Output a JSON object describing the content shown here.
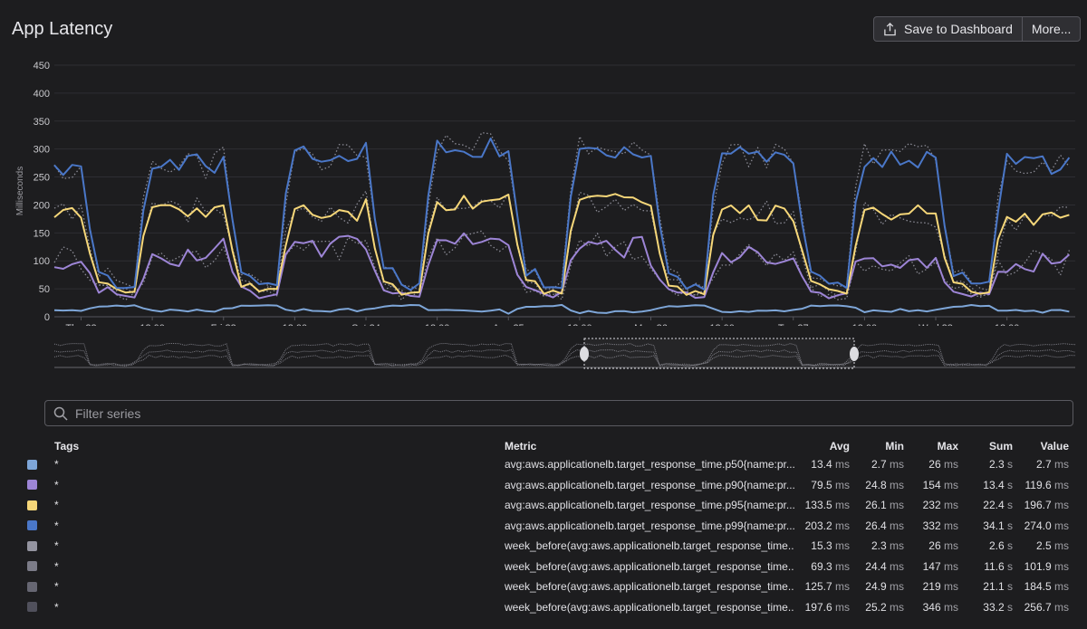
{
  "title": "App Latency",
  "toolbar": {
    "save_label": "Save to Dashboard",
    "more_label": "More..."
  },
  "filter": {
    "placeholder": "Filter series"
  },
  "table": {
    "headers": {
      "tags": "Tags",
      "metric": "Metric",
      "avg": "Avg",
      "min": "Min",
      "max": "Max",
      "sum": "Sum",
      "value": "Value"
    },
    "rows": [
      {
        "color": "#7ea6d8",
        "tag": "*",
        "metric": "avg:aws.applicationelb.target_response_time.p50{name:pr...",
        "avg": "13.4",
        "avg_u": "ms",
        "min": "2.7",
        "min_u": "ms",
        "max": "26",
        "max_u": "ms",
        "sum": "2.3",
        "sum_u": "s",
        "value": "2.7",
        "value_u": "ms"
      },
      {
        "color": "#9d85d6",
        "tag": "*",
        "metric": "avg:aws.applicationelb.target_response_time.p90{name:pr...",
        "avg": "79.5",
        "avg_u": "ms",
        "min": "24.8",
        "min_u": "ms",
        "max": "154",
        "max_u": "ms",
        "sum": "13.4",
        "sum_u": "s",
        "value": "119.6",
        "value_u": "ms"
      },
      {
        "color": "#f6d779",
        "tag": "*",
        "metric": "avg:aws.applicationelb.target_response_time.p95{name:pr...",
        "avg": "133.5",
        "avg_u": "ms",
        "min": "26.1",
        "min_u": "ms",
        "max": "232",
        "max_u": "ms",
        "sum": "22.4",
        "sum_u": "s",
        "value": "196.7",
        "value_u": "ms"
      },
      {
        "color": "#4a77c8",
        "tag": "*",
        "metric": "avg:aws.applicationelb.target_response_time.p99{name:pr...",
        "avg": "203.2",
        "avg_u": "ms",
        "min": "26.4",
        "min_u": "ms",
        "max": "332",
        "max_u": "ms",
        "sum": "34.1",
        "sum_u": "s",
        "value": "274.0",
        "value_u": "ms"
      },
      {
        "color": "#9494a0",
        "tag": "*",
        "metric": "week_before(avg:aws.applicationelb.target_response_time...",
        "avg": "15.3",
        "avg_u": "ms",
        "min": "2.3",
        "min_u": "ms",
        "max": "26",
        "max_u": "ms",
        "sum": "2.6",
        "sum_u": "s",
        "value": "2.5",
        "value_u": "ms"
      },
      {
        "color": "#7c7c88",
        "tag": "*",
        "metric": "week_before(avg:aws.applicationelb.target_response_time...",
        "avg": "69.3",
        "avg_u": "ms",
        "min": "24.4",
        "min_u": "ms",
        "max": "147",
        "max_u": "ms",
        "sum": "11.6",
        "sum_u": "s",
        "value": "101.9",
        "value_u": "ms"
      },
      {
        "color": "#666672",
        "tag": "*",
        "metric": "week_before(avg:aws.applicationelb.target_response_time...",
        "avg": "125.7",
        "avg_u": "ms",
        "min": "24.9",
        "min_u": "ms",
        "max": "219",
        "max_u": "ms",
        "sum": "21.1",
        "sum_u": "s",
        "value": "184.5",
        "value_u": "ms"
      },
      {
        "color": "#50505c",
        "tag": "*",
        "metric": "week_before(avg:aws.applicationelb.target_response_time...",
        "avg": "197.6",
        "avg_u": "ms",
        "min": "25.2",
        "min_u": "ms",
        "max": "346",
        "max_u": "ms",
        "sum": "33.2",
        "sum_u": "s",
        "value": "256.7",
        "value_u": "ms"
      }
    ]
  },
  "chart_data": {
    "type": "line",
    "ylabel": "Milliseconds",
    "ylim": [
      0,
      450
    ],
    "yticks": [
      0,
      50,
      100,
      150,
      200,
      250,
      300,
      350,
      400,
      450
    ],
    "xlim": [
      "Aug 21 19:30",
      "Aug 28 23:30"
    ],
    "xticks": [
      {
        "label": "Thu 22",
        "x": "Aug 22 00:00"
      },
      {
        "label": "12:00",
        "x": "Aug 22 12:00"
      },
      {
        "label": "Fri 23",
        "x": "Aug 23 00:00"
      },
      {
        "label": "12:00",
        "x": "Aug 23 12:00"
      },
      {
        "label": "Sat 24",
        "x": "Aug 24 00:00"
      },
      {
        "label": "12:00",
        "x": "Aug 24 12:00"
      },
      {
        "label": "Aug 25",
        "x": "Aug 25 00:00"
      },
      {
        "label": "12:00",
        "x": "Aug 25 12:00"
      },
      {
        "label": "Mon 26",
        "x": "Aug 26 00:00"
      },
      {
        "label": "12:00",
        "x": "Aug 26 12:00"
      },
      {
        "label": "Tue 27",
        "x": "Aug 27 00:00"
      },
      {
        "label": "12:00",
        "x": "Aug 27 12:00"
      },
      {
        "label": "Wed 28",
        "x": "Aug 28 00:00"
      },
      {
        "label": "12:00",
        "x": "Aug 28 12:00"
      }
    ],
    "grid": true,
    "pattern": {
      "days": [
        {
          "label": "Thu 22",
          "p99": 272,
          "p95": 190,
          "p90": 105,
          "p50": 10
        },
        {
          "label": "Fri 23",
          "p99": 285,
          "p95": 185,
          "p90": 125,
          "p50": 12
        },
        {
          "label": "Sat 24",
          "p99": 305,
          "p95": 205,
          "p90": 135,
          "p50": 11
        },
        {
          "label": "Aug 25",
          "p99": 300,
          "p95": 205,
          "p90": 125,
          "p50": 8
        },
        {
          "label": "Mon 26",
          "p99": 288,
          "p95": 185,
          "p90": 105,
          "p50": 10
        },
        {
          "label": "Tue 27",
          "p99": 285,
          "p95": 185,
          "p90": 100,
          "p50": 11
        },
        {
          "label": "Wed 28",
          "p99": 275,
          "p95": 175,
          "p90": 95,
          "p50": 10
        }
      ],
      "night_values": {
        "p99": 55,
        "p95": 45,
        "p90": 40,
        "p50": 20
      }
    },
    "series": [
      {
        "name": "p50",
        "color": "#7ea6d8",
        "dotted": false
      },
      {
        "name": "p90",
        "color": "#9d85d6",
        "dotted": false
      },
      {
        "name": "p95",
        "color": "#f6d779",
        "dotted": false
      },
      {
        "name": "p99",
        "color": "#4a77c8",
        "dotted": false
      },
      {
        "name": "week_before p90",
        "color": "#8a8a94",
        "dotted": true
      },
      {
        "name": "week_before p95",
        "color": "#8a8a94",
        "dotted": true
      },
      {
        "name": "week_before p99",
        "color": "#8a8a94",
        "dotted": true
      }
    ]
  }
}
